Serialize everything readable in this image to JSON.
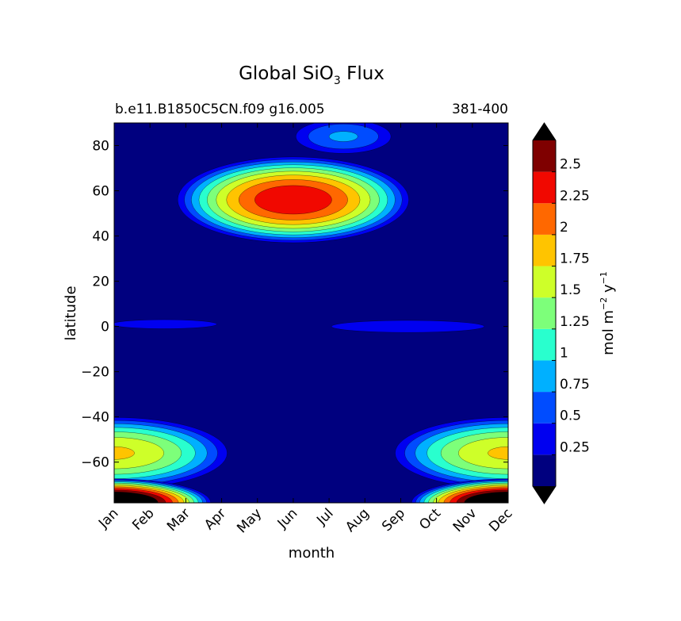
{
  "chart_data": {
    "type": "heatmap",
    "title": "Global SiO",
    "title_subscript": "3",
    "title_suffix": " Flux",
    "subtitle_left": "b.e11.B1850C5CN.f09 g16.005",
    "subtitle_right": "381-400",
    "xlabel": "month",
    "ylabel": "latitude",
    "x_categories": [
      "Jan",
      "Feb",
      "Mar",
      "Apr",
      "May",
      "Jun",
      "Jul",
      "Aug",
      "Sep",
      "Oct",
      "Nov",
      "Dec"
    ],
    "ylim": [
      -78,
      90
    ],
    "y_ticks": [
      80,
      60,
      40,
      20,
      0,
      -20,
      -40,
      -60
    ],
    "y_tick_labels": [
      "80",
      "60",
      "40",
      "20",
      "0",
      "−20",
      "−40",
      "−60"
    ],
    "colorbar": {
      "label": "mol m",
      "label_sup1": "−2",
      "label_mid": " y",
      "label_sup2": "−1",
      "levels": [
        0,
        0.25,
        0.5,
        0.75,
        1,
        1.25,
        1.5,
        1.75,
        2,
        2.25,
        2.5,
        2.75
      ],
      "tick_values": [
        0.25,
        0.5,
        0.75,
        1,
        1.25,
        1.5,
        1.75,
        2,
        2.25,
        2.5
      ],
      "tick_labels": [
        "0.25",
        "0.5",
        "0.75",
        "1",
        "1.25",
        "1.5",
        "1.75",
        "2",
        "2.25",
        "2.5"
      ],
      "colors": [
        "#00007f",
        "#0000f0",
        "#004cff",
        "#00b0ff",
        "#29ffce",
        "#7dff7a",
        "#ceff29",
        "#ffc400",
        "#ff6800",
        "#f10800",
        "#7f0000"
      ],
      "under_color": "#000000",
      "over_color": "#000000",
      "extend": "both"
    },
    "features": [
      {
        "name": "northern-bloom",
        "month_center": 5.0,
        "lat_center": 56,
        "month_halfwidth": 3.4,
        "lat_halfwidth": 20,
        "peak": 2.5
      },
      {
        "name": "northern-arctic-plume",
        "month_center": 6.4,
        "lat_center": 84,
        "month_halfwidth": 1.6,
        "lat_halfwidth": 9,
        "peak": 0.8
      },
      {
        "name": "equatorial-band-early",
        "month_center": 1.4,
        "lat_center": 1,
        "month_halfwidth": 2.2,
        "lat_halfwidth": 3,
        "peak": 0.45
      },
      {
        "name": "equatorial-band-late",
        "month_center": 8.2,
        "lat_center": 0,
        "month_halfwidth": 3.2,
        "lat_halfwidth": 4,
        "peak": 0.45
      },
      {
        "name": "southern-summer-belt",
        "month_center": 0,
        "lat_center": -56,
        "month_halfwidth": 3.4,
        "lat_halfwidth": 17,
        "peak": 1.8
      },
      {
        "name": "antarctic-coast-max",
        "month_center": 0,
        "lat_center": -78,
        "month_halfwidth": 2.8,
        "lat_halfwidth": 11,
        "peak": 3.4
      }
    ]
  }
}
